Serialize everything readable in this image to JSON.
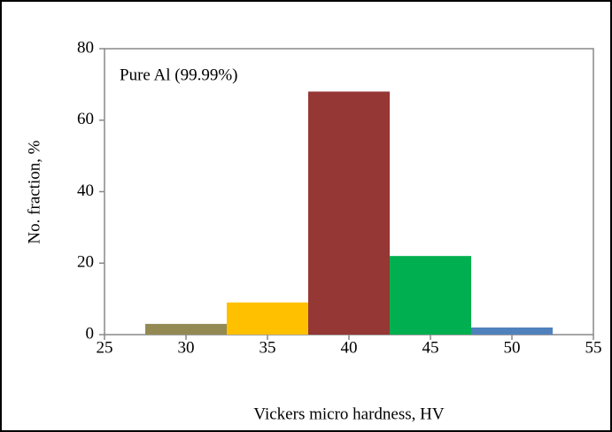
{
  "chart_data": {
    "type": "histogram",
    "xlabel": "Vickers micro hardness, HV",
    "ylabel": "No. fraction, %",
    "annotation": "Pure Al (99.99%)",
    "bins": [
      27.5,
      32.5,
      37.5,
      42.5,
      47.5,
      52.5
    ],
    "counts": [
      3,
      9,
      68,
      22,
      2
    ],
    "colors": [
      "#938953",
      "#ffc000",
      "#953735",
      "#00b050",
      "#4f81bd"
    ],
    "xlim": [
      25,
      55
    ],
    "xticks": [
      25,
      30,
      35,
      40,
      45,
      50,
      55
    ],
    "ylim": [
      0,
      80
    ],
    "yticks": [
      0,
      20,
      40,
      60,
      80
    ],
    "grid": false
  }
}
